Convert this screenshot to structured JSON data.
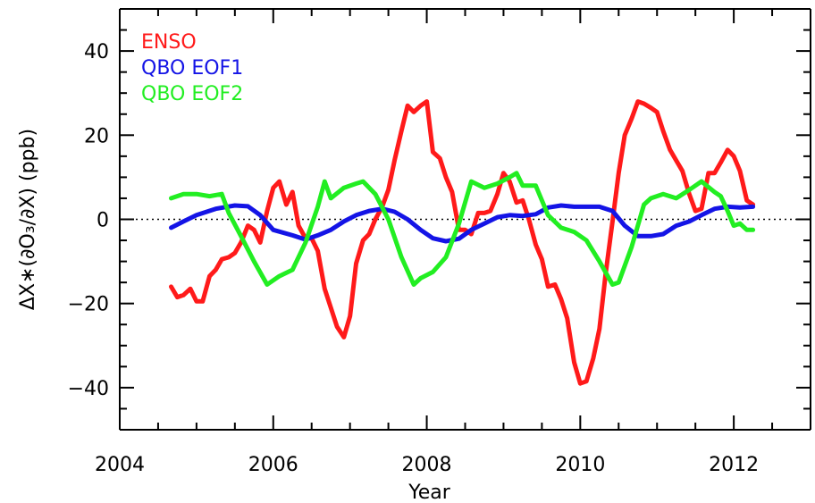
{
  "chart_data": {
    "type": "line",
    "title": "",
    "xlabel": "Year",
    "ylabel": "ΔX∗(∂O₃/∂X) (ppb)",
    "xlim": [
      2004,
      2013
    ],
    "ylim": [
      -50,
      50
    ],
    "x_ticks": [
      2004,
      2006,
      2008,
      2010,
      2012
    ],
    "y_ticks": [
      -40,
      -20,
      0,
      20,
      40
    ],
    "x_tick_labels": [
      "2004",
      "2006",
      "2008",
      "2010",
      "2012"
    ],
    "y_tick_labels": [
      "−40",
      "−20",
      "0",
      "20",
      "40"
    ],
    "reference_line": {
      "y": 0,
      "style": "dotted"
    },
    "legend_placement": "top-left",
    "series": [
      {
        "name": "ENSO",
        "color": "#ff1a1a",
        "points": [
          [
            2004.67,
            -16
          ],
          [
            2004.75,
            -18.5
          ],
          [
            2004.83,
            -18
          ],
          [
            2004.92,
            -16.5
          ],
          [
            2005.0,
            -19.5
          ],
          [
            2005.08,
            -19.5
          ],
          [
            2005.17,
            -13.5
          ],
          [
            2005.25,
            -12
          ],
          [
            2005.33,
            -9.5
          ],
          [
            2005.42,
            -9
          ],
          [
            2005.5,
            -8
          ],
          [
            2005.58,
            -5.5
          ],
          [
            2005.67,
            -1.5
          ],
          [
            2005.75,
            -2.5
          ],
          [
            2005.83,
            -5.5
          ],
          [
            2005.92,
            2
          ],
          [
            2006.0,
            7.5
          ],
          [
            2006.08,
            9
          ],
          [
            2006.17,
            3.5
          ],
          [
            2006.25,
            6.5
          ],
          [
            2006.33,
            -1.5
          ],
          [
            2006.42,
            -4.5
          ],
          [
            2006.5,
            -4.5
          ],
          [
            2006.58,
            -7.5
          ],
          [
            2006.67,
            -16.5
          ],
          [
            2006.75,
            -21
          ],
          [
            2006.83,
            -25.5
          ],
          [
            2006.92,
            -28
          ],
          [
            2007.0,
            -23
          ],
          [
            2007.08,
            -10.5
          ],
          [
            2007.17,
            -5
          ],
          [
            2007.25,
            -3.5
          ],
          [
            2007.33,
            0
          ],
          [
            2007.42,
            3
          ],
          [
            2007.5,
            7
          ],
          [
            2007.58,
            14
          ],
          [
            2007.67,
            21
          ],
          [
            2007.75,
            27
          ],
          [
            2007.83,
            25.5
          ],
          [
            2007.92,
            27
          ],
          [
            2008.0,
            28
          ],
          [
            2008.08,
            16
          ],
          [
            2008.17,
            14.5
          ],
          [
            2008.25,
            10
          ],
          [
            2008.33,
            6.5
          ],
          [
            2008.42,
            -2.5
          ],
          [
            2008.5,
            -2.5
          ],
          [
            2008.58,
            -3.5
          ],
          [
            2008.67,
            1.5
          ],
          [
            2008.75,
            1.5
          ],
          [
            2008.83,
            2
          ],
          [
            2008.92,
            6
          ],
          [
            2009.0,
            11
          ],
          [
            2009.08,
            9
          ],
          [
            2009.17,
            4
          ],
          [
            2009.25,
            4.5
          ],
          [
            2009.33,
            0
          ],
          [
            2009.42,
            -6
          ],
          [
            2009.5,
            -9.5
          ],
          [
            2009.58,
            -16
          ],
          [
            2009.67,
            -15.5
          ],
          [
            2009.75,
            -19
          ],
          [
            2009.83,
            -23.5
          ],
          [
            2009.92,
            -34
          ],
          [
            2010.0,
            -39
          ],
          [
            2010.08,
            -38.5
          ],
          [
            2010.17,
            -33
          ],
          [
            2010.25,
            -26
          ],
          [
            2010.33,
            -13
          ],
          [
            2010.42,
            -0.5
          ],
          [
            2010.5,
            11
          ],
          [
            2010.58,
            20
          ],
          [
            2010.67,
            24
          ],
          [
            2010.75,
            28
          ],
          [
            2010.83,
            27.5
          ],
          [
            2010.92,
            26.5
          ],
          [
            2011.0,
            25.5
          ],
          [
            2011.08,
            21
          ],
          [
            2011.17,
            16.5
          ],
          [
            2011.25,
            14
          ],
          [
            2011.33,
            11.5
          ],
          [
            2011.42,
            6
          ],
          [
            2011.5,
            2
          ],
          [
            2011.58,
            2.5
          ],
          [
            2011.67,
            11
          ],
          [
            2011.75,
            11
          ],
          [
            2011.83,
            13.5
          ],
          [
            2011.92,
            16.5
          ],
          [
            2012.0,
            15
          ],
          [
            2012.08,
            11.5
          ],
          [
            2012.17,
            4.5
          ],
          [
            2012.25,
            3.5
          ]
        ]
      },
      {
        "name": "QBO EOF1",
        "color": "#1414e6",
        "points": [
          [
            2004.67,
            -2
          ],
          [
            2004.83,
            -0.5
          ],
          [
            2005.0,
            1
          ],
          [
            2005.25,
            2.5
          ],
          [
            2005.5,
            3.3
          ],
          [
            2005.67,
            3.1
          ],
          [
            2005.83,
            1
          ],
          [
            2006.0,
            -2.5
          ],
          [
            2006.25,
            -3.8
          ],
          [
            2006.42,
            -4.8
          ],
          [
            2006.58,
            -3.8
          ],
          [
            2006.75,
            -2.5
          ],
          [
            2006.92,
            -0.5
          ],
          [
            2007.08,
            1
          ],
          [
            2007.25,
            2
          ],
          [
            2007.42,
            2.5
          ],
          [
            2007.58,
            1.8
          ],
          [
            2007.75,
            0
          ],
          [
            2007.92,
            -2.5
          ],
          [
            2008.08,
            -4.5
          ],
          [
            2008.25,
            -5.2
          ],
          [
            2008.42,
            -4.6
          ],
          [
            2008.58,
            -2.5
          ],
          [
            2008.75,
            -1
          ],
          [
            2008.92,
            0.5
          ],
          [
            2009.08,
            1
          ],
          [
            2009.25,
            0.8
          ],
          [
            2009.42,
            1.2
          ],
          [
            2009.58,
            2.8
          ],
          [
            2009.75,
            3.3
          ],
          [
            2009.92,
            3
          ],
          [
            2010.08,
            3
          ],
          [
            2010.25,
            3
          ],
          [
            2010.42,
            2
          ],
          [
            2010.58,
            -1.5
          ],
          [
            2010.75,
            -4
          ],
          [
            2010.92,
            -4
          ],
          [
            2011.08,
            -3.5
          ],
          [
            2011.25,
            -1.5
          ],
          [
            2011.42,
            -0.5
          ],
          [
            2011.58,
            1
          ],
          [
            2011.75,
            2.5
          ],
          [
            2011.92,
            3
          ],
          [
            2012.08,
            2.8
          ],
          [
            2012.25,
            3
          ]
        ]
      },
      {
        "name": "QBO EOF2",
        "color": "#22ee22",
        "points": [
          [
            2004.67,
            5
          ],
          [
            2004.83,
            6
          ],
          [
            2005.0,
            6
          ],
          [
            2005.17,
            5.5
          ],
          [
            2005.33,
            6
          ],
          [
            2005.42,
            1.5
          ],
          [
            2005.58,
            -4
          ],
          [
            2005.75,
            -10
          ],
          [
            2005.92,
            -15.5
          ],
          [
            2006.08,
            -13.5
          ],
          [
            2006.25,
            -12
          ],
          [
            2006.42,
            -5.5
          ],
          [
            2006.58,
            3
          ],
          [
            2006.67,
            9
          ],
          [
            2006.75,
            5
          ],
          [
            2006.92,
            7.5
          ],
          [
            2007.08,
            8.5
          ],
          [
            2007.17,
            9
          ],
          [
            2007.33,
            6
          ],
          [
            2007.5,
            0
          ],
          [
            2007.67,
            -9
          ],
          [
            2007.83,
            -15.5
          ],
          [
            2007.92,
            -14
          ],
          [
            2008.08,
            -12.5
          ],
          [
            2008.25,
            -9
          ],
          [
            2008.42,
            -1
          ],
          [
            2008.58,
            9
          ],
          [
            2008.75,
            7.5
          ],
          [
            2008.92,
            8.5
          ],
          [
            2009.08,
            10
          ],
          [
            2009.17,
            11
          ],
          [
            2009.25,
            8
          ],
          [
            2009.42,
            8
          ],
          [
            2009.58,
            1
          ],
          [
            2009.75,
            -2
          ],
          [
            2009.92,
            -3
          ],
          [
            2010.08,
            -5
          ],
          [
            2010.25,
            -10
          ],
          [
            2010.42,
            -15.5
          ],
          [
            2010.5,
            -15
          ],
          [
            2010.67,
            -6.5
          ],
          [
            2010.83,
            3.5
          ],
          [
            2010.92,
            5
          ],
          [
            2011.08,
            6
          ],
          [
            2011.25,
            5
          ],
          [
            2011.42,
            7
          ],
          [
            2011.58,
            9
          ],
          [
            2011.75,
            6.5
          ],
          [
            2011.83,
            5.5
          ],
          [
            2011.92,
            2
          ],
          [
            2012.0,
            -1.5
          ],
          [
            2012.08,
            -1
          ],
          [
            2012.17,
            -2.5
          ],
          [
            2012.25,
            -2.5
          ]
        ]
      }
    ]
  }
}
